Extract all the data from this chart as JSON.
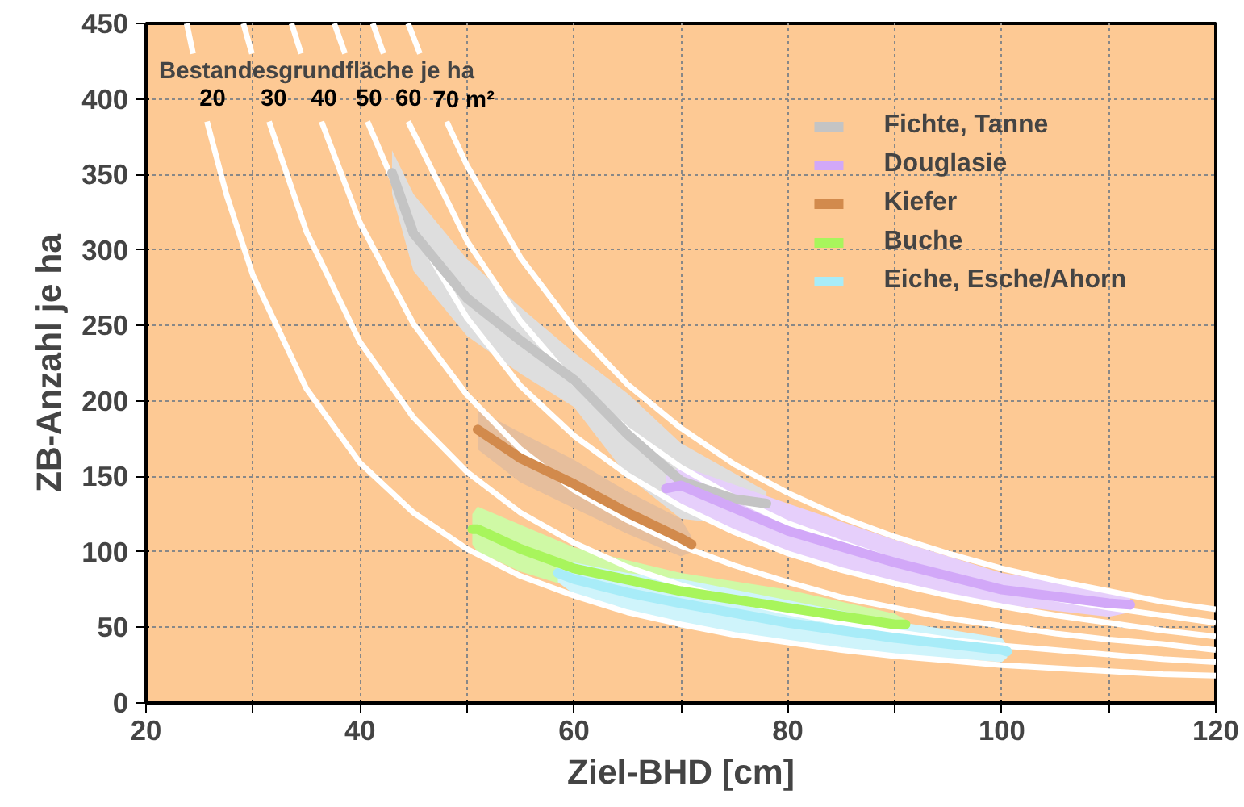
{
  "chart_data": {
    "type": "line",
    "xlabel": "Ziel-BHD [cm]",
    "ylabel": "ZB-Anzahl je ha",
    "annotations": [
      "Bestandesgrundfläche je ha"
    ],
    "xlim": [
      20,
      120
    ],
    "ylim": [
      0,
      450
    ],
    "xticks": [
      20,
      {
        "value": 30,
        "label": null
      },
      40,
      {
        "value": 50,
        "label": null
      },
      60,
      {
        "value": 70,
        "label": null
      },
      80,
      {
        "value": 90,
        "label": null
      },
      100,
      {
        "value": 110,
        "label": null
      },
      120
    ],
    "yticks": [
      0,
      50,
      100,
      150,
      200,
      250,
      300,
      350,
      400,
      450
    ],
    "grid": true,
    "legend": "top right",
    "line_style": "solid",
    "marker": "none",
    "series": [
      {
        "name": "20",
        "color": "#ffffff",
        "x": [
          23.8,
          24.4,
          25,
          25.7,
          27.5,
          30,
          35,
          40,
          45,
          50,
          55,
          60,
          65,
          70,
          75,
          80,
          85,
          90,
          95,
          100,
          105,
          110,
          115,
          120
        ],
        "values": [
          450,
          430,
          null,
          385,
          337,
          283,
          208,
          159,
          126,
          102,
          84,
          71,
          60,
          52,
          45,
          40,
          35,
          31,
          28,
          25,
          23,
          21,
          19,
          18
        ]
      },
      {
        "name": "30",
        "color": "#ffffff",
        "x": [
          29.1,
          29.9,
          30.7,
          31.5,
          35,
          40,
          45,
          50,
          55,
          60,
          65,
          70,
          75,
          80,
          85,
          90,
          95,
          100,
          105,
          110,
          115,
          120
        ],
        "values": [
          450,
          430,
          null,
          385,
          312,
          239,
          189,
          153,
          126,
          106,
          90,
          78,
          68,
          60,
          53,
          47,
          42,
          38,
          35,
          32,
          29,
          27
        ]
      },
      {
        "name": "40",
        "color": "#ffffff",
        "x": [
          33.6,
          34.5,
          35.4,
          36.4,
          40,
          45,
          50,
          55,
          60,
          65,
          70,
          75,
          80,
          85,
          90,
          95,
          100,
          105,
          110,
          115,
          120
        ],
        "values": [
          450,
          430,
          null,
          385,
          318,
          251,
          204,
          168,
          141,
          121,
          104,
          91,
          80,
          70,
          63,
          56,
          51,
          46,
          42,
          39,
          35
        ]
      },
      {
        "name": "50",
        "color": "#ffffff",
        "x": [
          37.6,
          38.6,
          39.6,
          40.7,
          45,
          50,
          55,
          60,
          65,
          70,
          75,
          80,
          85,
          90,
          95,
          100,
          105,
          110,
          115,
          120
        ],
        "values": [
          450,
          430,
          null,
          385,
          314,
          255,
          210,
          177,
          151,
          130,
          113,
          99,
          88,
          79,
          71,
          64,
          58,
          53,
          48,
          44
        ]
      },
      {
        "name": "60",
        "color": "#ffffff",
        "x": [
          41.2,
          42.2,
          43.3,
          44.5,
          50,
          55,
          60,
          65,
          70,
          75,
          80,
          85,
          90,
          95,
          100,
          105,
          110,
          115,
          120
        ],
        "values": [
          450,
          430,
          null,
          385,
          306,
          253,
          212,
          181,
          156,
          136,
          119,
          106,
          94,
          85,
          76,
          69,
          63,
          58,
          53
        ]
      },
      {
        "name": "70 m²",
        "color": "#ffffff",
        "x": [
          44.5,
          45.6,
          46.8,
          48.1,
          50,
          55,
          60,
          65,
          70,
          75,
          80,
          85,
          90,
          95,
          100,
          105,
          110,
          115,
          120
        ],
        "values": [
          450,
          430,
          null,
          385,
          356,
          295,
          248,
          211,
          182,
          158,
          139,
          123,
          110,
          99,
          89,
          81,
          74,
          67,
          62
        ]
      },
      {
        "name": "Fichte, Tanne",
        "type": "line",
        "color": "#c4c4c4",
        "x": [
          43,
          45,
          50,
          55,
          60,
          65,
          70,
          75,
          78
        ],
        "lower": [
          337,
          286,
          243,
          218,
          196,
          150,
          122,
          118,
          125
        ],
        "upper": [
          366,
          337,
          294,
          262,
          232,
          205,
          172,
          152,
          140
        ],
        "values": [
          351,
          311,
          268,
          240,
          214,
          178,
          147,
          135,
          132
        ]
      },
      {
        "name": "Douglasie",
        "type": "line",
        "color": "#d2a8f8",
        "x": [
          68.6,
          70,
          80,
          90,
          100,
          110,
          112
        ],
        "lower": [
          135,
          132,
          97,
          79,
          65,
          57,
          60
        ],
        "upper": [
          150,
          157,
          132,
          108,
          86,
          75,
          70
        ],
        "values": [
          142,
          144,
          114,
          93,
          75,
          66,
          65
        ]
      },
      {
        "name": "Kiefer",
        "type": "line",
        "color": "#d28a4c",
        "x": [
          51,
          55,
          60,
          65,
          70,
          71
        ],
        "lower": [
          168,
          146,
          129,
          112,
          97,
          100
        ],
        "upper": [
          194,
          179,
          161,
          140,
          122,
          110
        ],
        "values": [
          181,
          162,
          145,
          126,
          109,
          105
        ]
      },
      {
        "name": "Buche",
        "type": "line",
        "color": "#a8f55c",
        "x": [
          50.5,
          51,
          55,
          60,
          70,
          80,
          90,
          91
        ],
        "lower": [
          105,
          100,
          87,
          76,
          63,
          52,
          46,
          50
        ],
        "upper": [
          125,
          130,
          118,
          103,
          86,
          75,
          59,
          55
        ],
        "values": [
          115,
          115,
          102,
          89,
          74,
          63,
          52,
          52
        ]
      },
      {
        "name": "Eiche, Esche/Ahorn",
        "type": "line",
        "color": "#a8ecf8",
        "x": [
          58.5,
          60,
          65,
          70,
          80,
          90,
          100,
          100.5
        ],
        "lower": [
          80,
          72,
          61,
          50,
          39,
          32,
          27,
          30
        ],
        "upper": [
          92,
          93,
          86,
          82,
          68,
          54,
          43,
          38
        ],
        "values": [
          86,
          82,
          73,
          66,
          53,
          43,
          35,
          34
        ]
      }
    ]
  }
}
